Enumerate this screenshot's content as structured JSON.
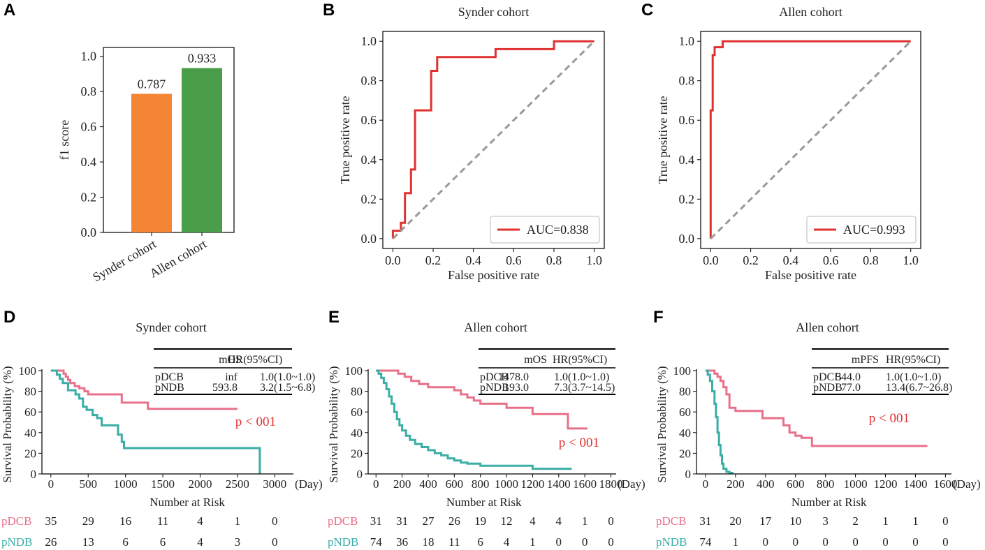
{
  "chart_data": [
    {
      "panel": "A",
      "type": "bar",
      "title": "",
      "ylabel": "f1 score",
      "xlabel": "",
      "ylim": [
        0,
        1.05
      ],
      "yticks": [
        0.0,
        0.2,
        0.4,
        0.6,
        0.8,
        1.0
      ],
      "ytick_labels": [
        "0.0",
        "0.2",
        "0.4",
        "0.6",
        "0.8",
        "1.0"
      ],
      "categories": [
        "Synder cohort",
        "Allen cohort"
      ],
      "values": [
        0.787,
        0.933
      ],
      "value_labels": [
        "0.787",
        "0.933"
      ],
      "colors": [
        "#f58434",
        "#4a9e4a"
      ]
    },
    {
      "panel": "B",
      "type": "line",
      "title": "Synder cohort",
      "xlabel": "False positive rate",
      "ylabel": "True positive rate",
      "xlim": [
        -0.05,
        1.05
      ],
      "ylim": [
        -0.05,
        1.05
      ],
      "ticks": [
        0.0,
        0.2,
        0.4,
        0.6,
        0.8,
        1.0
      ],
      "tick_labels": [
        "0.0",
        "0.2",
        "0.4",
        "0.6",
        "0.8",
        "1.0"
      ],
      "series": [
        {
          "name": "AUC=0.838",
          "color": "#e03131",
          "x": [
            0,
            0,
            0.02,
            0.02,
            0.04,
            0.04,
            0.06,
            0.06,
            0.09,
            0.09,
            0.11,
            0.11,
            0.19,
            0.19,
            0.22,
            0.22,
            0.51,
            0.51,
            0.8,
            0.8,
            1.0
          ],
          "y": [
            0,
            0.04,
            0.04,
            0.04,
            0.04,
            0.08,
            0.08,
            0.23,
            0.23,
            0.35,
            0.35,
            0.65,
            0.65,
            0.85,
            0.85,
            0.92,
            0.92,
            0.96,
            0.96,
            1.0,
            1.0
          ]
        },
        {
          "name": "chance",
          "color": "#999999",
          "dashed": true,
          "x": [
            0,
            1
          ],
          "y": [
            0,
            1
          ]
        }
      ],
      "legend": "AUC=0.838",
      "legend_position": "bottom-right"
    },
    {
      "panel": "C",
      "type": "line",
      "title": "Allen cohort",
      "xlabel": "False positive rate",
      "ylabel": "True positive rate",
      "xlim": [
        -0.05,
        1.05
      ],
      "ylim": [
        -0.05,
        1.05
      ],
      "ticks": [
        0.0,
        0.2,
        0.4,
        0.6,
        0.8,
        1.0
      ],
      "tick_labels": [
        "0.0",
        "0.2",
        "0.4",
        "0.6",
        "0.8",
        "1.0"
      ],
      "series": [
        {
          "name": "AUC=0.993",
          "color": "#e03131",
          "x": [
            0,
            0,
            0.01,
            0.01,
            0.02,
            0.02,
            0.04,
            0.04,
            0.06,
            0.06,
            1.0
          ],
          "y": [
            0,
            0.65,
            0.65,
            0.93,
            0.93,
            0.97,
            0.97,
            0.97,
            0.97,
            1.0,
            1.0
          ]
        },
        {
          "name": "chance",
          "color": "#999999",
          "dashed": true,
          "x": [
            0,
            1
          ],
          "y": [
            0,
            1
          ]
        }
      ],
      "legend": "AUC=0.993",
      "legend_position": "bottom-right"
    },
    {
      "panel": "D",
      "type": "line",
      "title": "Synder cohort",
      "ylabel": "Survival Probability (%)",
      "xunit": "(Day)",
      "xlim": [
        -120,
        3250
      ],
      "ylim": [
        0,
        100
      ],
      "xticks": [
        0,
        500,
        1000,
        1500,
        2000,
        2500,
        3000
      ],
      "xtick_labels": [
        "0",
        "500",
        "1000",
        "1500",
        "2000",
        "2500",
        "3000"
      ],
      "yticks": [
        0,
        20,
        40,
        60,
        80,
        100
      ],
      "ytick_labels": [
        "0",
        "20",
        "40",
        "60",
        "80",
        "100"
      ],
      "table": {
        "columns": [
          "",
          "mOS",
          "HR(95%CI)"
        ],
        "rows": [
          [
            "pDCB",
            "inf",
            "1.0(1.0~1.0)"
          ],
          [
            "pNDB",
            "593.8",
            "3.2(1.5~6.8)"
          ]
        ]
      },
      "p_value": "p < 001",
      "series": [
        {
          "name": "pDCB",
          "color": "#e8718a",
          "times": [
            0,
            170,
            200,
            230,
            260,
            320,
            380,
            450,
            500,
            580,
            650,
            700,
            950,
            1300,
            2500
          ],
          "surv": [
            100,
            97,
            94,
            91,
            88,
            85,
            83,
            80,
            77,
            77,
            77,
            77,
            69,
            63,
            63
          ]
        },
        {
          "name": "pNDB",
          "color": "#3aaea6",
          "times": [
            0,
            80,
            120,
            160,
            230,
            280,
            330,
            380,
            430,
            480,
            560,
            620,
            680,
            760,
            900,
            950,
            980,
            2800,
            2800
          ],
          "surv": [
            100,
            96,
            92,
            88,
            81,
            81,
            77,
            73,
            65,
            62,
            57,
            54,
            47,
            47,
            38,
            31,
            25,
            25,
            0
          ]
        }
      ],
      "risk_table": {
        "title": "Number at Risk",
        "times": [
          0,
          500,
          1000,
          1500,
          2000,
          2500,
          3000
        ],
        "groups": [
          {
            "name": "pDCB",
            "color": "#e8718a",
            "counts": [
              "35",
              "29",
              "16",
              "11",
              "4",
              "1",
              "0"
            ]
          },
          {
            "name": "pNDB",
            "color": "#3aaea6",
            "counts": [
              "26",
              "13",
              "6",
              "6",
              "4",
              "3",
              "0"
            ]
          }
        ]
      }
    },
    {
      "panel": "E",
      "type": "line",
      "title": "Allen cohort",
      "ylabel": "Survival Probability (%)",
      "xunit": "(Day)",
      "xlim": [
        -60,
        1840
      ],
      "ylim": [
        0,
        100
      ],
      "xticks": [
        0,
        200,
        400,
        600,
        800,
        1000,
        1200,
        1400,
        1600,
        1800
      ],
      "xtick_labels": [
        "0",
        "200",
        "400",
        "600",
        "800",
        "1000",
        "1200",
        "1400",
        "1600",
        "1800"
      ],
      "yticks": [
        0,
        20,
        40,
        60,
        80,
        100
      ],
      "ytick_labels": [
        "0",
        "20",
        "40",
        "60",
        "80",
        "100"
      ],
      "table": {
        "columns": [
          "",
          "mOS",
          "HR(95%CI)"
        ],
        "rows": [
          [
            "pDCB",
            "1478.0",
            "1.0(1.0~1.0)"
          ],
          [
            "pNDB",
            "193.0",
            "7.3(3.7~14.5)"
          ]
        ]
      },
      "p_value": "p < 001",
      "series": [
        {
          "name": "pDCB",
          "color": "#e8718a",
          "times": [
            0,
            170,
            220,
            270,
            330,
            400,
            600,
            650,
            700,
            750,
            800,
            1000,
            1200,
            1470,
            1620
          ],
          "surv": [
            100,
            97,
            94,
            90,
            87,
            84,
            81,
            77,
            74,
            71,
            68,
            64,
            58,
            44,
            44
          ]
        },
        {
          "name": "pNDB",
          "color": "#3aaea6",
          "times": [
            0,
            20,
            40,
            60,
            80,
            100,
            120,
            140,
            160,
            180,
            200,
            230,
            260,
            300,
            350,
            400,
            450,
            500,
            550,
            600,
            650,
            700,
            800,
            1200,
            1500
          ],
          "surv": [
            100,
            97,
            93,
            88,
            82,
            75,
            68,
            60,
            53,
            47,
            42,
            37,
            33,
            29,
            26,
            23,
            20,
            18,
            15,
            13,
            11,
            10,
            8,
            5,
            5
          ]
        }
      ],
      "risk_table": {
        "title": "Number at Risk",
        "times": [
          0,
          200,
          400,
          600,
          800,
          1000,
          1200,
          1400,
          1600,
          1800
        ],
        "groups": [
          {
            "name": "pDCB",
            "color": "#e8718a",
            "counts": [
              "31",
              "31",
              "27",
              "26",
              "19",
              "12",
              "4",
              "4",
              "1",
              "0"
            ]
          },
          {
            "name": "pNDB",
            "color": "#3aaea6",
            "counts": [
              "74",
              "36",
              "18",
              "11",
              "6",
              "4",
              "1",
              "0",
              "0",
              "0"
            ]
          }
        ]
      }
    },
    {
      "panel": "F",
      "type": "line",
      "title": "Allen cohort",
      "ylabel": "Survival Probability (%)",
      "xunit": "(Day)",
      "xlim": [
        -60,
        1640
      ],
      "ylim": [
        0,
        100
      ],
      "xticks": [
        0,
        200,
        400,
        600,
        800,
        1000,
        1200,
        1400,
        1600
      ],
      "xtick_labels": [
        "0",
        "200",
        "400",
        "600",
        "800",
        "1000",
        "1200",
        "1400",
        "1600"
      ],
      "yticks": [
        0,
        20,
        40,
        60,
        80,
        100
      ],
      "ytick_labels": [
        "0",
        "20",
        "40",
        "60",
        "80",
        "100"
      ],
      "table": {
        "columns": [
          "",
          "mPFS",
          "HR(95%CI)"
        ],
        "rows": [
          [
            "pDCB",
            "544.0",
            "1.0(1.0~1.0)"
          ],
          [
            "pNDB",
            "77.0",
            "13.4(6.7~26.8)"
          ]
        ]
      },
      "p_value": "p < 001",
      "series": [
        {
          "name": "pDCB",
          "color": "#e8718a",
          "times": [
            0,
            60,
            80,
            100,
            120,
            140,
            160,
            200,
            380,
            520,
            560,
            600,
            640,
            710,
            1480
          ],
          "surv": [
            100,
            97,
            94,
            90,
            84,
            77,
            64,
            61,
            54,
            47,
            40,
            37,
            35,
            27,
            27
          ]
        },
        {
          "name": "pNDB",
          "color": "#3aaea6",
          "times": [
            0,
            15,
            30,
            45,
            60,
            70,
            80,
            90,
            100,
            110,
            120,
            140,
            160,
            180
          ],
          "surv": [
            100,
            96,
            90,
            80,
            68,
            55,
            40,
            28,
            18,
            10,
            5,
            2,
            1,
            0
          ]
        }
      ],
      "risk_table": {
        "title": "Number at Risk",
        "times": [
          0,
          200,
          400,
          600,
          800,
          1000,
          1200,
          1400,
          1600
        ],
        "groups": [
          {
            "name": "pDCB",
            "color": "#e8718a",
            "counts": [
              "31",
              "20",
              "17",
              "10",
              "3",
              "2",
              "1",
              "1",
              "0"
            ]
          },
          {
            "name": "pNDB",
            "color": "#3aaea6",
            "counts": [
              "74",
              "1",
              "0",
              "0",
              "0",
              "0",
              "0",
              "0",
              "0"
            ]
          }
        ]
      }
    }
  ]
}
